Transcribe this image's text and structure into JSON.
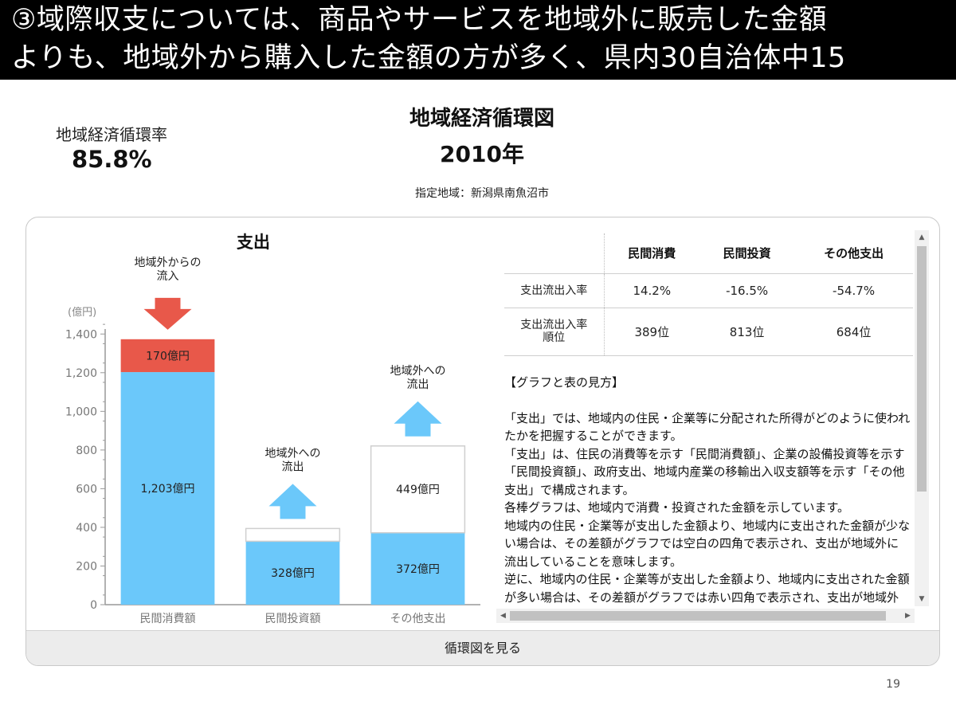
{
  "header": {
    "line1": "③域際収支については、商品やサービスを地域外に販売した金額",
    "line2": "よりも、地域外から購入した金額の方が多く、県内30自治体中15"
  },
  "rate": {
    "label": "地域経済循環率",
    "value": "85.8%"
  },
  "title": "地域経済循環図",
  "year": "2010年",
  "region": "指定地域：新潟県南魚沼市",
  "footer_button": "循環図を見る",
  "page_number": "19",
  "colors": {
    "inside": "#6bc8fa",
    "inflow": "#e8584a",
    "axis": "#999999",
    "header_bg": "#000000"
  },
  "table": {
    "headers": [
      "",
      "民間消費",
      "民間投資",
      "その他支出"
    ],
    "rows": [
      {
        "label": "支出流出入率",
        "values": [
          "14.2%",
          "-16.5%",
          "-54.7%"
        ]
      },
      {
        "label1": "支出流出入率",
        "label2": "順位",
        "values": [
          "389位",
          "813位",
          "684位"
        ]
      }
    ]
  },
  "description": {
    "heading": "【グラフと表の見方】",
    "paragraphs": [
      "「支出」では、地域内の住民・企業等に分配された所得がどのように使われたかを把握することができます。",
      "「支出」は、住民の消費等を示す「民間消費額」、企業の設備投資等を示す「民間投資額」、政府支出、地域内産業の移輸出入収支額等を示す「その他支出」で構成されます。",
      "各棒グラフは、地域内で消費・投資された金額を示しています。",
      "地域内の住民・企業等が支出した金額より、地域内に支出された金額が少ない場合は、その差額がグラフでは空白の四角で表示され、支出が地域外に流出していることを意味します。",
      "逆に、地域内の住民・企業等が支出した金額より、地域内に支出された金額が多い場合は、その差額がグラフでは赤い四角で表示され、支出が地域外から流入していることを意味します。"
    ]
  },
  "chart_data": {
    "type": "bar",
    "title": "支出",
    "ylabel": "(億円)",
    "ylim": [
      0,
      1500
    ],
    "yticks": [
      0,
      200,
      400,
      600,
      800,
      1000,
      1200,
      1400
    ],
    "ytick_labels": [
      "0",
      "200",
      "400",
      "600",
      "800",
      "1,000",
      "1,200",
      "1,400"
    ],
    "categories": [
      "民間消費額",
      "民間投資額",
      "その他支出"
    ],
    "series": [
      {
        "key": "inside",
        "values": [
          1203,
          328,
          372
        ],
        "labels": [
          "1,203億円",
          "328億円",
          "372億円"
        ]
      },
      {
        "key": "inflow",
        "values": [
          170,
          0,
          0
        ],
        "labels": [
          "170億円",
          "",
          ""
        ]
      },
      {
        "key": "outflow",
        "values": [
          0,
          66,
          449
        ],
        "labels": [
          "",
          "",
          "449億円"
        ]
      }
    ],
    "annotations": [
      {
        "category": "民間消費額",
        "direction": "down",
        "text1": "地域外からの",
        "text2": "流入"
      },
      {
        "category": "民間投資額",
        "direction": "up",
        "text1": "地域外への",
        "text2": "流出"
      },
      {
        "category": "その他支出",
        "direction": "up",
        "text1": "地域外への",
        "text2": "流出"
      }
    ]
  }
}
